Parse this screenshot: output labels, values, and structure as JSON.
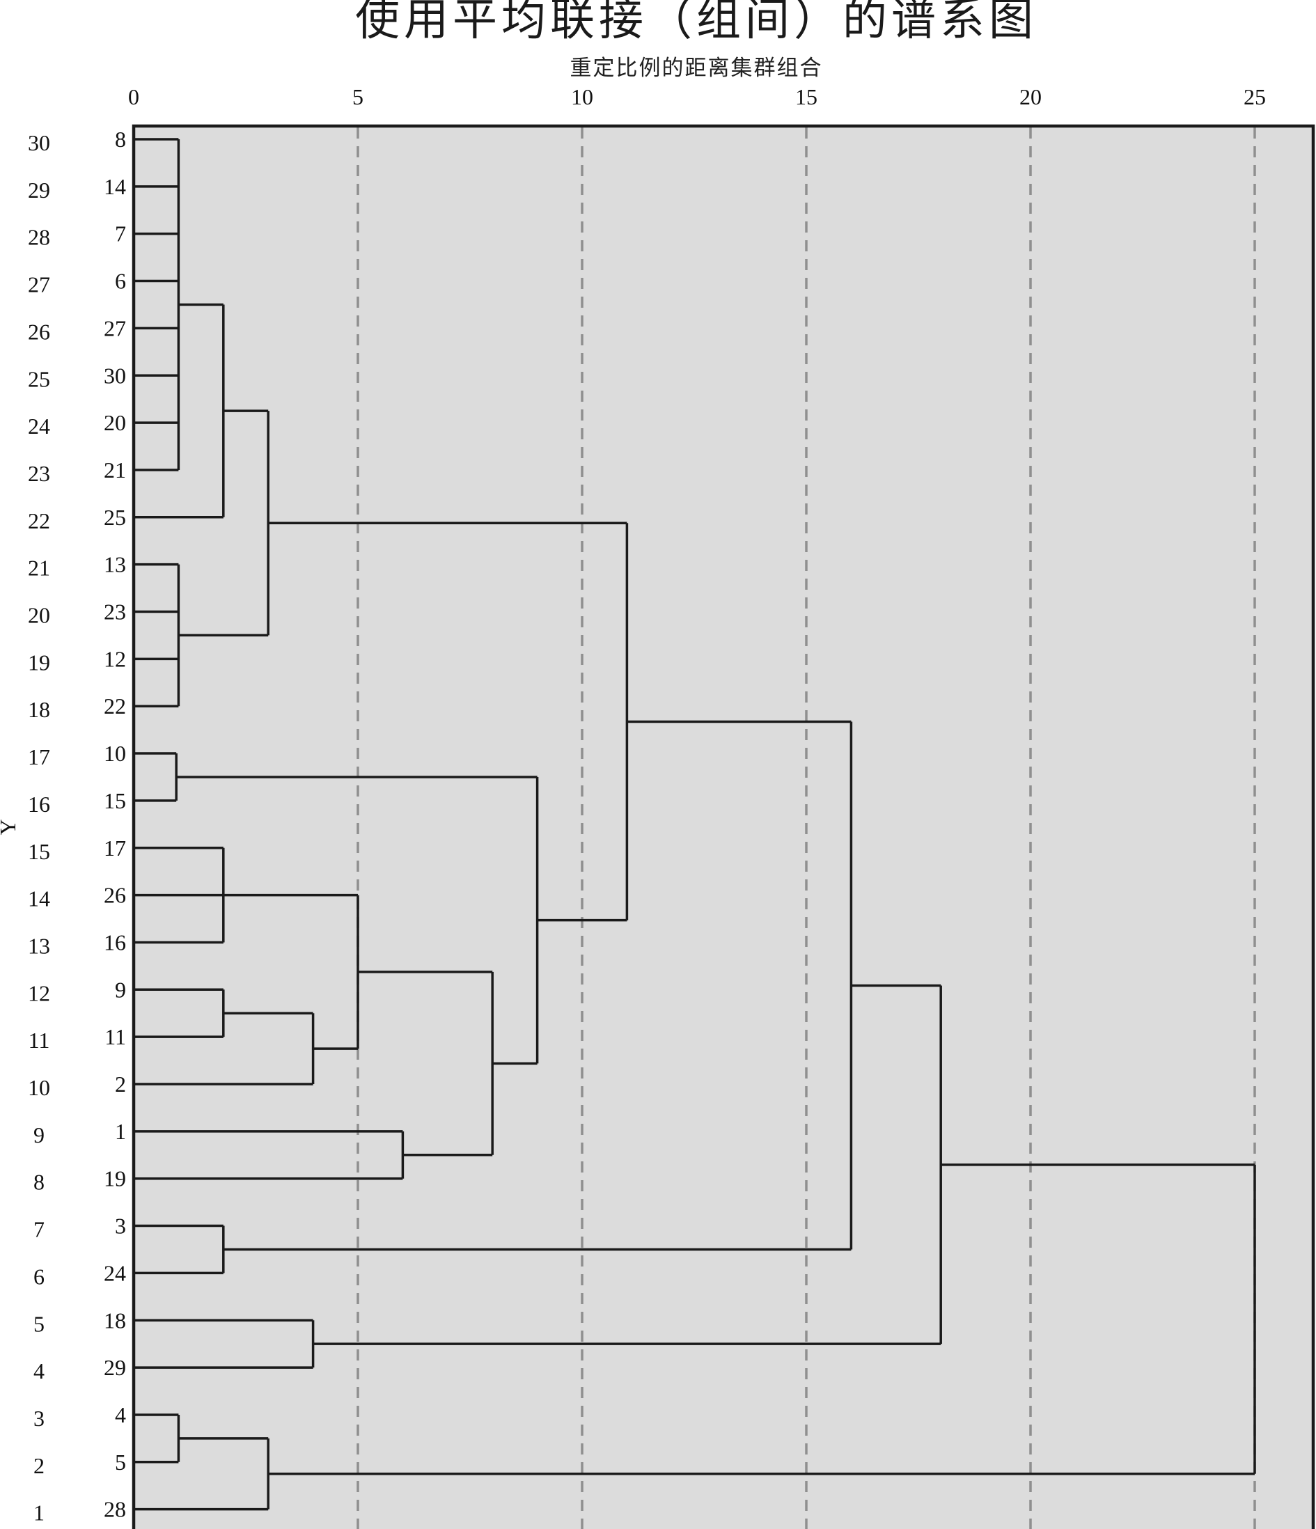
{
  "chart_data": {
    "type": "dendrogram",
    "title": "使用平均联接（组间）的谱系图",
    "subtitle": "重定比例的距离集群组合",
    "y_axis_label": "Y",
    "x_ticks": [
      "0",
      "5",
      "10",
      "15",
      "20",
      "25"
    ],
    "x_tick_values": [
      0,
      5,
      10,
      15,
      20,
      25
    ],
    "xlim": [
      0,
      26.3
    ],
    "grid": true,
    "y_positions": [
      "30",
      "29",
      "28",
      "27",
      "26",
      "25",
      "24",
      "23",
      "22",
      "21",
      "20",
      "19",
      "18",
      "17",
      "16",
      "15",
      "14",
      "13",
      "12",
      "11",
      "10",
      "9",
      "8",
      "7",
      "6",
      "5",
      "4",
      "3",
      "2",
      "1"
    ],
    "leaf_order": [
      "8",
      "14",
      "7",
      "6",
      "27",
      "30",
      "20",
      "21",
      "25",
      "13",
      "23",
      "12",
      "22",
      "10",
      "15",
      "17",
      "26",
      "16",
      "9",
      "11",
      "2",
      "1",
      "19",
      "3",
      "24",
      "18",
      "29",
      "4",
      "5",
      "28"
    ],
    "merges": [
      {
        "id": "A",
        "children": [
          "8",
          "14",
          "7",
          "6",
          "27",
          "30",
          "20",
          "21"
        ],
        "distance": 1
      },
      {
        "id": "B",
        "children": [
          "A",
          "25"
        ],
        "distance": 2
      },
      {
        "id": "C",
        "children": [
          "13",
          "23",
          "12",
          "22"
        ],
        "distance": 1
      },
      {
        "id": "D",
        "children": [
          "B",
          "C"
        ],
        "distance": 3
      },
      {
        "id": "E",
        "children": [
          "10",
          "15"
        ],
        "distance": 0.95
      },
      {
        "id": "F",
        "children": [
          "17",
          "26",
          "16"
        ],
        "distance": 2
      },
      {
        "id": "G",
        "children": [
          "9",
          "11"
        ],
        "distance": 2
      },
      {
        "id": "H",
        "children": [
          "G",
          "2"
        ],
        "distance": 4
      },
      {
        "id": "I",
        "children": [
          "F",
          "H"
        ],
        "distance": 5
      },
      {
        "id": "J",
        "children": [
          "1",
          "19"
        ],
        "distance": 6
      },
      {
        "id": "K",
        "children": [
          "I",
          "J"
        ],
        "distance": 8
      },
      {
        "id": "L",
        "children": [
          "E",
          "K"
        ],
        "distance": 9
      },
      {
        "id": "M",
        "children": [
          "D",
          "L"
        ],
        "distance": 11
      },
      {
        "id": "N",
        "children": [
          "3",
          "24"
        ],
        "distance": 2
      },
      {
        "id": "O",
        "children": [
          "M",
          "N"
        ],
        "distance": 16
      },
      {
        "id": "P",
        "children": [
          "18",
          "29"
        ],
        "distance": 4
      },
      {
        "id": "Q",
        "children": [
          "O",
          "P"
        ],
        "distance": 18
      },
      {
        "id": "R",
        "children": [
          "4",
          "5"
        ],
        "distance": 1
      },
      {
        "id": "S",
        "children": [
          "R",
          "28"
        ],
        "distance": 3
      },
      {
        "id": "T",
        "children": [
          "Q",
          "S"
        ],
        "distance": 25
      }
    ]
  },
  "colors": {
    "plot_background": "#dcdcdc",
    "link": "#1a1a1a",
    "grid": "#8f8f8f",
    "frame": "#1a1a1a"
  }
}
